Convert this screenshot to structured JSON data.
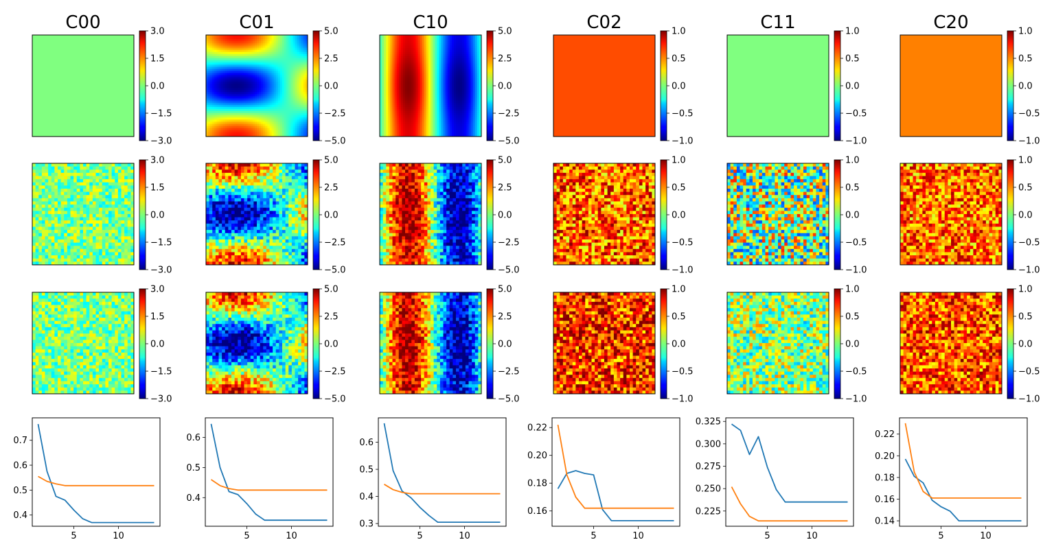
{
  "chart_data": {
    "type": "heatmap",
    "columns": [
      "C00",
      "C01",
      "C10",
      "C02",
      "C11",
      "C20"
    ],
    "colormap": "jet",
    "colorbars": [
      {
        "column": "C00",
        "min": -3.0,
        "max": 3.0,
        "ticks": [
          "3.0",
          "1.5",
          "0.0",
          "−1.5",
          "−3.0"
        ]
      },
      {
        "column": "C01",
        "min": -5.0,
        "max": 5.0,
        "ticks": [
          "5.0",
          "2.5",
          "0.0",
          "−2.5",
          "−5.0"
        ]
      },
      {
        "column": "C10",
        "min": -5.0,
        "max": 5.0,
        "ticks": [
          "5.0",
          "2.5",
          "0.0",
          "−2.5",
          "−5.0"
        ]
      },
      {
        "column": "C02",
        "min": -1.0,
        "max": 1.0,
        "ticks": [
          "1.0",
          "0.5",
          "0.0",
          "−0.5",
          "−1.0"
        ]
      },
      {
        "column": "C11",
        "min": -1.0,
        "max": 1.0,
        "ticks": [
          "1.0",
          "0.5",
          "0.0",
          "−0.5",
          "−1.0"
        ]
      },
      {
        "column": "C20",
        "min": -1.0,
        "max": 1.0,
        "ticks": [
          "1.0",
          "0.5",
          "0.0",
          "−0.5",
          "−1.0"
        ]
      }
    ],
    "field_rows": [
      {
        "row": 1,
        "kind": "smooth"
      },
      {
        "row": 2,
        "kind": "noisy"
      },
      {
        "row": 3,
        "kind": "noisy"
      }
    ],
    "line_plots": [
      {
        "column": "C00",
        "type": "line",
        "x": [
          1,
          2,
          3,
          4,
          5,
          6,
          7,
          8,
          9,
          10,
          11,
          12,
          13,
          14
        ],
        "xticks": [
          "5",
          "10"
        ],
        "ylim": [
          0.355,
          0.79
        ],
        "yticks": [
          "0.7",
          "0.6",
          "0.5",
          "0.4"
        ],
        "series": [
          {
            "color": "#1f77b4",
            "values": [
              0.765,
              0.575,
              0.475,
              0.46,
              0.42,
              0.385,
              0.37,
              0.37,
              0.37,
              0.37,
              0.37,
              0.37,
              0.37,
              0.37
            ]
          },
          {
            "color": "#ff7f0e",
            "values": [
              0.555,
              0.535,
              0.525,
              0.518,
              0.518,
              0.518,
              0.518,
              0.518,
              0.518,
              0.518,
              0.518,
              0.518,
              0.518,
              0.518
            ]
          }
        ]
      },
      {
        "column": "C01",
        "type": "line",
        "x": [
          1,
          2,
          3,
          4,
          5,
          6,
          7,
          8,
          9,
          10,
          11,
          12,
          13,
          14
        ],
        "xticks": [
          "5",
          "10"
        ],
        "ylim": [
          0.305,
          0.665
        ],
        "yticks": [
          "0.6",
          "0.5",
          "0.4"
        ],
        "series": [
          {
            "color": "#1f77b4",
            "values": [
              0.645,
              0.5,
              0.42,
              0.41,
              0.38,
              0.345,
              0.325,
              0.325,
              0.325,
              0.325,
              0.325,
              0.325,
              0.325,
              0.325
            ]
          },
          {
            "color": "#ff7f0e",
            "values": [
              0.46,
              0.44,
              0.43,
              0.425,
              0.425,
              0.425,
              0.425,
              0.425,
              0.425,
              0.425,
              0.425,
              0.425,
              0.425,
              0.425
            ]
          }
        ]
      },
      {
        "column": "C10",
        "type": "line",
        "x": [
          1,
          2,
          3,
          4,
          5,
          6,
          7,
          8,
          9,
          10,
          11,
          12,
          13,
          14
        ],
        "xticks": [
          "5",
          "10"
        ],
        "ylim": [
          0.29,
          0.69
        ],
        "yticks": [
          "0.6",
          "0.5",
          "0.4",
          "0.3"
        ],
        "series": [
          {
            "color": "#1f77b4",
            "values": [
              0.67,
              0.495,
              0.42,
              0.395,
              0.36,
              0.33,
              0.305,
              0.305,
              0.305,
              0.305,
              0.305,
              0.305,
              0.305,
              0.305
            ]
          },
          {
            "color": "#ff7f0e",
            "values": [
              0.445,
              0.425,
              0.415,
              0.41,
              0.41,
              0.41,
              0.41,
              0.41,
              0.41,
              0.41,
              0.41,
              0.41,
              0.41,
              0.41
            ]
          }
        ]
      },
      {
        "column": "C02",
        "type": "line",
        "x": [
          1,
          2,
          3,
          4,
          5,
          6,
          7,
          8,
          9,
          10,
          11,
          12,
          13,
          14
        ],
        "xticks": [
          "5",
          "10"
        ],
        "ylim": [
          0.149,
          0.227
        ],
        "yticks": [
          "0.22",
          "0.20",
          "0.18",
          "0.16"
        ],
        "series": [
          {
            "color": "#1f77b4",
            "values": [
              0.176,
              0.187,
              0.189,
              0.187,
              0.186,
              0.161,
              0.153,
              0.153,
              0.153,
              0.153,
              0.153,
              0.153,
              0.153,
              0.153
            ]
          },
          {
            "color": "#ff7f0e",
            "values": [
              0.222,
              0.186,
              0.17,
              0.162,
              0.162,
              0.162,
              0.162,
              0.162,
              0.162,
              0.162,
              0.162,
              0.162,
              0.162,
              0.162
            ]
          }
        ]
      },
      {
        "column": "C11",
        "type": "line",
        "x": [
          1,
          2,
          3,
          4,
          5,
          6,
          7,
          8,
          9,
          10,
          11,
          12,
          13,
          14
        ],
        "xticks": [
          "5",
          "10"
        ],
        "ylim": [
          0.208,
          0.329
        ],
        "yticks": [
          "0.325",
          "0.300",
          "0.275",
          "0.250",
          "0.225"
        ],
        "series": [
          {
            "color": "#1f77b4",
            "values": [
              0.322,
              0.315,
              0.288,
              0.308,
              0.274,
              0.249,
              0.235,
              0.235,
              0.235,
              0.235,
              0.235,
              0.235,
              0.235,
              0.235
            ]
          },
          {
            "color": "#ff7f0e",
            "values": [
              0.252,
              0.233,
              0.219,
              0.214,
              0.214,
              0.214,
              0.214,
              0.214,
              0.214,
              0.214,
              0.214,
              0.214,
              0.214,
              0.214
            ]
          }
        ]
      },
      {
        "column": "C20",
        "type": "line",
        "x": [
          1,
          2,
          3,
          4,
          5,
          6,
          7,
          8,
          9,
          10,
          11,
          12,
          13,
          14
        ],
        "xticks": [
          "5",
          "10"
        ],
        "ylim": [
          0.135,
          0.235
        ],
        "yticks": [
          "0.22",
          "0.20",
          "0.18",
          "0.16",
          "0.14"
        ],
        "series": [
          {
            "color": "#1f77b4",
            "values": [
              0.197,
              0.181,
              0.175,
              0.159,
              0.153,
              0.149,
              0.14,
              0.14,
              0.14,
              0.14,
              0.14,
              0.14,
              0.14,
              0.14
            ]
          },
          {
            "color": "#ff7f0e",
            "values": [
              0.23,
              0.185,
              0.167,
              0.161,
              0.161,
              0.161,
              0.161,
              0.161,
              0.161,
              0.161,
              0.161,
              0.161,
              0.161,
              0.161
            ]
          }
        ]
      }
    ]
  }
}
